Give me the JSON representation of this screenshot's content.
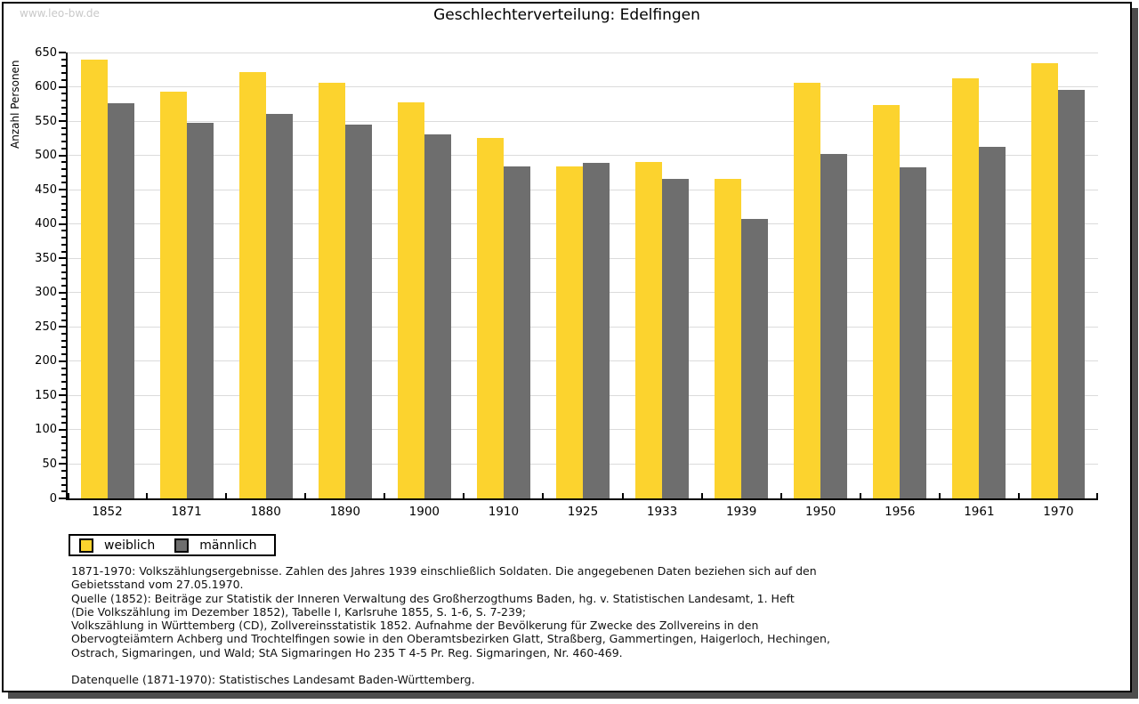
{
  "watermark": "www.leo-bw.de",
  "title": "Geschlechterverteilung: Edelfingen",
  "chart_data": {
    "type": "bar",
    "title": "Geschlechterverteilung: Edelfingen",
    "xlabel": "",
    "ylabel": "Anzahl Personen",
    "ylim": [
      0,
      650
    ],
    "ytick_step": 50,
    "yminor_step": 10,
    "grid": true,
    "legend_position": "bottom-left-below-plot",
    "categories": [
      "1852",
      "1871",
      "1880",
      "1890",
      "1900",
      "1910",
      "1925",
      "1933",
      "1939",
      "1950",
      "1956",
      "1961",
      "1970"
    ],
    "series": [
      {
        "name": "weiblich",
        "color": "#fcd32e",
        "values": [
          640,
          593,
          622,
          606,
          578,
          525,
          484,
          490,
          466,
          606,
          574,
          612,
          635
        ]
      },
      {
        "name": "männlich",
        "color": "#6e6e6e",
        "values": [
          576,
          548,
          561,
          545,
          531,
          484,
          489,
          466,
          408,
          502,
          483,
          512,
          596
        ]
      }
    ]
  },
  "colors": {
    "accent_yellow": "#fcd32e",
    "accent_gray": "#6e6e6e",
    "gridline": "#dbdbdb",
    "axis": "#000000",
    "watermark": "#c9c9c9",
    "frame_shadow": "#4d4d4d"
  },
  "footnotes": {
    "lines": [
      "1871-1970: Volkszählungsergebnisse. Zahlen des Jahres 1939 einschließlich Soldaten. Die angegebenen Daten beziehen sich auf den",
      "Gebietsstand vom 27.05.1970.",
      "Quelle (1852): Beiträge zur Statistik der Inneren Verwaltung des Großherzogthums Baden, hg. v. Statistischen Landesamt, 1. Heft",
      "(Die Volkszählung im Dezember 1852), Tabelle I, Karlsruhe 1855, S. 1-6, S. 7-239;",
      "Volkszählung in Württemberg (CD), Zollvereinsstatistik 1852. Aufnahme der Bevölkerung für Zwecke des Zollvereins in den",
      "Obervogteiämtern Achberg und Trochtelfingen sowie in den Oberamtsbezirken Glatt, Straßberg, Gammertingen, Haigerloch, Hechingen,",
      "Ostrach, Sigmaringen, und Wald; StA Sigmaringen Ho 235 T 4-5 Pr. Reg. Sigmaringen, Nr. 460-469."
    ],
    "datasource": "Datenquelle (1871-1970): Statistisches Landesamt Baden-Württemberg."
  }
}
